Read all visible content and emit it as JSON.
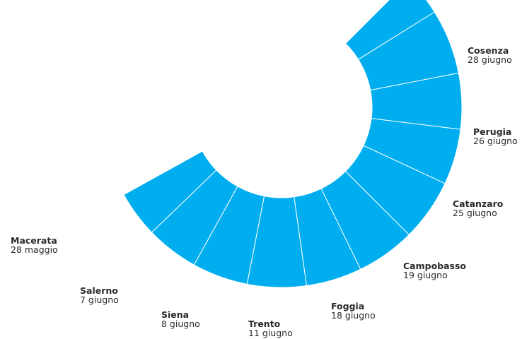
{
  "colors": {
    "segment": "#00aeef",
    "divider": "#ffffff",
    "text": "#2b2b2b"
  },
  "stops": [
    {
      "city": "Macerata",
      "date": "28 maggio"
    },
    {
      "city": "Salerno",
      "date": "7 giugno"
    },
    {
      "city": "Siena",
      "date": "8 giugno"
    },
    {
      "city": "Trento",
      "date": "11 giugno"
    },
    {
      "city": "Foggia",
      "date": "18 giugno"
    },
    {
      "city": "Campobasso",
      "date": "19 giugno"
    },
    {
      "city": "Catanzaro",
      "date": "25 giugno"
    },
    {
      "city": "Perugia",
      "date": "26 giugno"
    },
    {
      "city": "Cosenza",
      "date": "28 giugno"
    }
  ]
}
